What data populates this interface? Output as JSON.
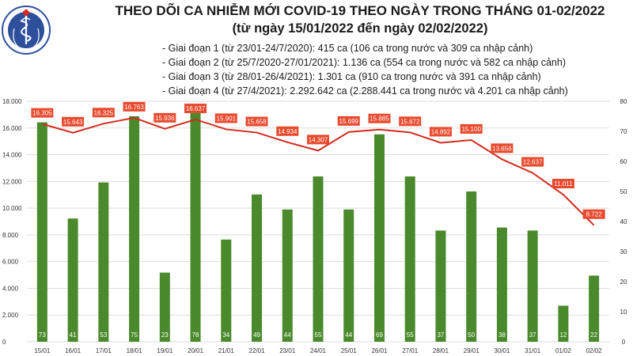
{
  "header": {
    "title": "THEO DÕI CA NHIỄM MỚI COVID-19 THEO NGÀY TRONG THÁNG 01-02/2022",
    "subtitle": "(từ ngày 15/01/2022 đến ngày 02/02/2022)",
    "phases": [
      "- Giai đoạn 1 (từ 23/01-24/7/2020): 415 ca (106 ca trong nước và 309 ca nhập cảnh)",
      "- Giai đoạn 2 (từ 25/7/2020-27/01/2021): 1.136 ca (554 ca trong nước và 582 ca nhập cảnh)",
      "- Giai đoạn 3 (từ 28/01-26/4/2021): 1.301 ca (910 ca trong nước và 391 ca nhập cảnh)",
      "- Giai đoạn 4 (từ 27/4/2021): 2.292.642 ca (2.288.441 ca trong nước và 4.201 ca nhập cảnh)"
    ]
  },
  "logo": {
    "top_text": "BỘ Y TẾ",
    "bottom_text": "MINISTRY OF HEALTH"
  },
  "colors": {
    "bar": "#4a8a2c",
    "line": "#d42a1f",
    "line_label_bg": "#e84a2e",
    "grid": "#dddddd",
    "axis_text": "#333333",
    "logo_blue": "#2d4f9c"
  },
  "chart_data": {
    "type": "bar+line",
    "categories": [
      "15/01",
      "16/01",
      "17/01",
      "18/01",
      "19/01",
      "20/01",
      "21/01",
      "22/01",
      "23/01",
      "24/01",
      "25/01",
      "26/01",
      "27/01",
      "28/01",
      "29/01",
      "30/01",
      "31/01",
      "01/02",
      "02/02"
    ],
    "bars": {
      "axis": "right",
      "values": [
        73,
        41,
        53,
        75,
        23,
        78,
        34,
        49,
        44,
        55,
        44,
        69,
        55,
        37,
        50,
        38,
        37,
        12,
        22
      ],
      "labels": [
        "73",
        "41",
        "53",
        "75",
        "23",
        "78",
        "34",
        "49",
        "44",
        "55",
        "44",
        "69",
        "55",
        "37",
        "50",
        "38",
        "37",
        "12",
        "22"
      ]
    },
    "line": {
      "axis": "left",
      "values": [
        16305,
        15643,
        16325,
        16763,
        15936,
        16637,
        15901,
        15658,
        14934,
        14307,
        15699,
        15885,
        15672,
        14892,
        15100,
        13656,
        12637,
        11011,
        8722
      ],
      "labels": [
        "16.305",
        "15.643",
        "16.325",
        "16.763",
        "15.936",
        "16.637",
        "15.901",
        "15.658",
        "14.934",
        "14.307",
        "15.699",
        "15.885",
        "15.672",
        "14.892",
        "15.100",
        "13.656",
        "12.637",
        "11.011",
        "8.722"
      ]
    },
    "left_axis": {
      "ylim": [
        0,
        18000
      ],
      "ticks": [
        0,
        2000,
        4000,
        6000,
        8000,
        10000,
        12000,
        14000,
        16000,
        18000
      ],
      "tick_labels": [
        "0",
        "2.000",
        "4.000",
        "6.000",
        "8.000",
        "10.000",
        "12.000",
        "14.000",
        "16.000",
        "18.000"
      ]
    },
    "right_axis": {
      "ylim": [
        0,
        80
      ],
      "ticks": [
        0,
        10,
        20,
        30,
        40,
        50,
        60,
        70,
        80
      ],
      "tick_labels": [
        "0",
        "10",
        "20",
        "30",
        "40",
        "50",
        "60",
        "70",
        "80"
      ]
    },
    "grid": true
  }
}
